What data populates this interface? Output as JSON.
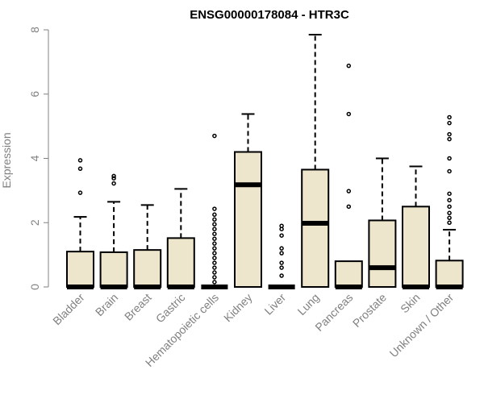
{
  "chart_data": {
    "type": "boxplot",
    "title": "ENSG00000178084 - HTR3C",
    "xlabel": "",
    "ylabel": "Expression",
    "ylim": [
      0,
      8
    ],
    "yticks": [
      "0",
      "2",
      "4",
      "6",
      "8"
    ],
    "grid": false,
    "colors": {
      "box_fill": "#ede6cc",
      "box_stroke": "#000000",
      "axis": "#808080",
      "label": "#808080",
      "title": "#000000"
    },
    "categories": [
      "Bladder",
      "Brain",
      "Breast",
      "Gastric",
      "Hematopoietic cells",
      "Kidney",
      "Liver",
      "Lung",
      "Pancreas",
      "Prostate",
      "Skin",
      "Unknown / Other"
    ],
    "boxes": [
      {
        "q1": 0,
        "median": 0,
        "q3": 1.1,
        "whisker_low": 0,
        "whisker_high": 2.18,
        "outliers": [
          2.93,
          3.68,
          3.94
        ]
      },
      {
        "q1": 0,
        "median": 0,
        "q3": 1.08,
        "whisker_low": 0,
        "whisker_high": 2.65,
        "outliers": [
          3.22,
          3.38,
          3.45
        ]
      },
      {
        "q1": 0,
        "median": 0,
        "q3": 1.15,
        "whisker_low": 0,
        "whisker_high": 2.55,
        "outliers": []
      },
      {
        "q1": 0,
        "median": 0,
        "q3": 1.52,
        "whisker_low": 0,
        "whisker_high": 3.05,
        "outliers": []
      },
      {
        "q1": 0,
        "median": 0,
        "q3": 0,
        "whisker_low": 0,
        "whisker_high": 0,
        "outliers": [
          0.15,
          0.3,
          0.45,
          0.6,
          0.75,
          0.9,
          1.05,
          1.2,
          1.35,
          1.5,
          1.65,
          1.8,
          1.95,
          2.1,
          2.25,
          2.43,
          4.7
        ]
      },
      {
        "q1": 0,
        "median": 3.18,
        "q3": 4.2,
        "whisker_low": 0,
        "whisker_high": 5.38,
        "outliers": []
      },
      {
        "q1": 0,
        "median": 0,
        "q3": 0,
        "whisker_low": 0,
        "whisker_high": 0,
        "outliers": [
          0.35,
          0.6,
          0.75,
          1.05,
          1.2,
          1.6,
          1.8,
          1.9
        ]
      },
      {
        "q1": 0,
        "median": 1.98,
        "q3": 3.65,
        "whisker_low": 0,
        "whisker_high": 7.85,
        "outliers": []
      },
      {
        "q1": 0,
        "median": 0,
        "q3": 0.8,
        "whisker_low": 0,
        "whisker_high": 0.8,
        "outliers": [
          2.5,
          2.98,
          5.38,
          6.88
        ]
      },
      {
        "q1": 0,
        "median": 0.6,
        "q3": 2.07,
        "whisker_low": 0,
        "whisker_high": 4.0,
        "outliers": []
      },
      {
        "q1": 0,
        "median": 0,
        "q3": 2.5,
        "whisker_low": 0,
        "whisker_high": 3.75,
        "outliers": []
      },
      {
        "q1": 0,
        "median": 0,
        "q3": 0.82,
        "whisker_low": 0,
        "whisker_high": 1.78,
        "outliers": [
          2.0,
          2.15,
          2.3,
          2.5,
          2.7,
          2.9,
          3.6,
          4.0,
          4.6,
          4.75,
          5.1,
          5.28
        ]
      }
    ]
  }
}
